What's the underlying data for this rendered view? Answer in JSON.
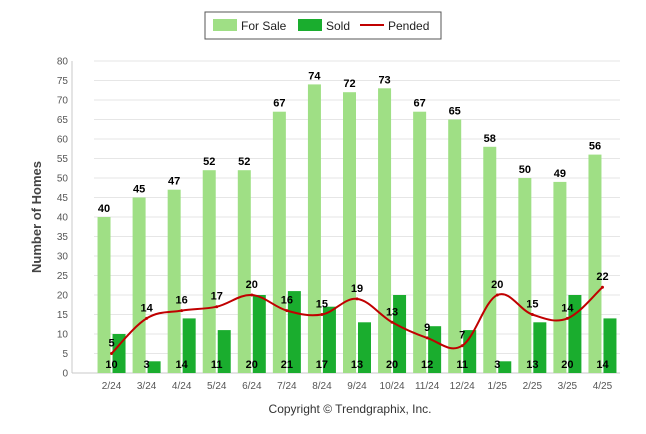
{
  "chart_data": {
    "type": "bar",
    "categories": [
      "2/24",
      "3/24",
      "4/24",
      "5/24",
      "6/24",
      "7/24",
      "8/24",
      "9/24",
      "10/24",
      "11/24",
      "12/24",
      "1/25",
      "2/25",
      "3/25",
      "4/25"
    ],
    "series": [
      {
        "name": "For Sale",
        "type": "bar",
        "color": "#9fdf85",
        "values": [
          40,
          45,
          47,
          52,
          52,
          67,
          74,
          72,
          73,
          67,
          65,
          58,
          50,
          49,
          56
        ]
      },
      {
        "name": "Sold",
        "type": "bar",
        "color": "#1aad2e",
        "values": [
          10,
          3,
          14,
          11,
          20,
          21,
          17,
          13,
          20,
          12,
          11,
          3,
          13,
          20,
          14
        ]
      },
      {
        "name": "Pended",
        "type": "line",
        "color": "#c00000",
        "values": [
          5,
          14,
          16,
          17,
          20,
          16,
          15,
          19,
          13,
          9,
          7,
          20,
          15,
          14,
          22
        ]
      }
    ],
    "xlabel": "",
    "ylabel": "Number of Homes",
    "ylim": [
      0,
      80
    ],
    "yticks": [
      0,
      5,
      10,
      15,
      20,
      25,
      30,
      35,
      40,
      45,
      50,
      55,
      60,
      65,
      70,
      75,
      80
    ],
    "grid": true,
    "legend": "top-center",
    "credit": "Copyright © Trendgraphix, Inc."
  }
}
